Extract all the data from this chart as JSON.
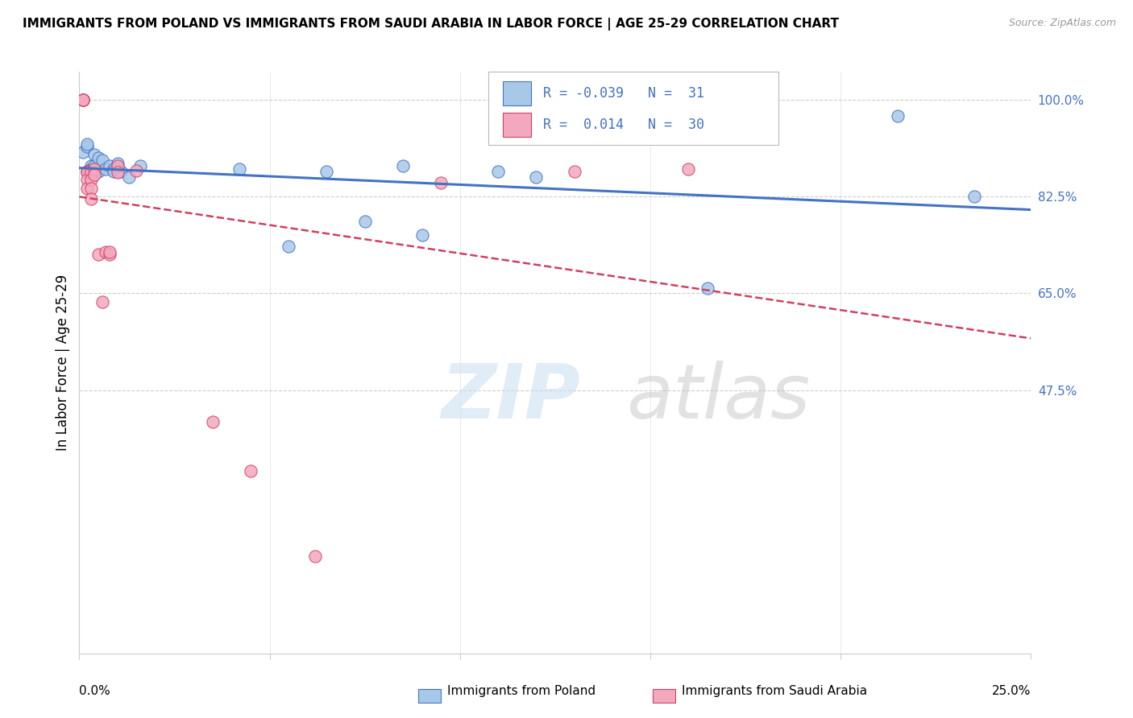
{
  "title": "IMMIGRANTS FROM POLAND VS IMMIGRANTS FROM SAUDI ARABIA IN LABOR FORCE | AGE 25-29 CORRELATION CHART",
  "source": "Source: ZipAtlas.com",
  "ylabel": "In Labor Force | Age 25-29",
  "yticks": [
    0.0,
    0.475,
    0.65,
    0.825,
    1.0
  ],
  "ytick_labels": [
    "",
    "47.5%",
    "65.0%",
    "82.5%",
    "100.0%"
  ],
  "xlim": [
    0.0,
    0.25
  ],
  "ylim": [
    0.0,
    1.05
  ],
  "legend_R_poland": "-0.039",
  "legend_N_poland": "31",
  "legend_R_saudi": "0.014",
  "legend_N_saudi": "30",
  "color_poland": "#a8c8e8",
  "color_saudi": "#f4a8c0",
  "trendline_poland_color": "#4472c4",
  "trendline_saudi_color": "#d04060",
  "poland_x": [
    0.001,
    0.002,
    0.002,
    0.003,
    0.003,
    0.003,
    0.004,
    0.004,
    0.005,
    0.005,
    0.006,
    0.007,
    0.008,
    0.009,
    0.009,
    0.01,
    0.01,
    0.011,
    0.013,
    0.016,
    0.042,
    0.055,
    0.065,
    0.075,
    0.085,
    0.09,
    0.11,
    0.12,
    0.165,
    0.215,
    0.235
  ],
  "poland_y": [
    0.905,
    0.915,
    0.92,
    0.88,
    0.875,
    0.87,
    0.9,
    0.88,
    0.895,
    0.87,
    0.89,
    0.875,
    0.88,
    0.875,
    0.87,
    0.885,
    0.875,
    0.87,
    0.86,
    0.88,
    0.875,
    0.735,
    0.87,
    0.78,
    0.88,
    0.755,
    0.87,
    0.86,
    0.66,
    0.97,
    0.825
  ],
  "saudi_x": [
    0.001,
    0.001,
    0.001,
    0.001,
    0.001,
    0.002,
    0.002,
    0.002,
    0.002,
    0.002,
    0.003,
    0.003,
    0.003,
    0.003,
    0.004,
    0.004,
    0.005,
    0.006,
    0.007,
    0.008,
    0.008,
    0.01,
    0.01,
    0.015,
    0.035,
    0.045,
    0.062,
    0.095,
    0.13,
    0.16
  ],
  "saudi_y": [
    1.0,
    1.0,
    1.0,
    1.0,
    1.0,
    0.87,
    0.87,
    0.868,
    0.855,
    0.84,
    0.868,
    0.855,
    0.84,
    0.82,
    0.875,
    0.865,
    0.72,
    0.635,
    0.725,
    0.72,
    0.725,
    0.88,
    0.868,
    0.872,
    0.418,
    0.33,
    0.175,
    0.85,
    0.87,
    0.875
  ],
  "grid_color": "#cccccc",
  "spine_color": "#cccccc",
  "title_fontsize": 11,
  "source_fontsize": 9,
  "axis_label_fontsize": 11,
  "tick_label_fontsize": 11,
  "scatter_size": 120,
  "trendline_lw_poland": 2.2,
  "trendline_lw_saudi": 1.8
}
